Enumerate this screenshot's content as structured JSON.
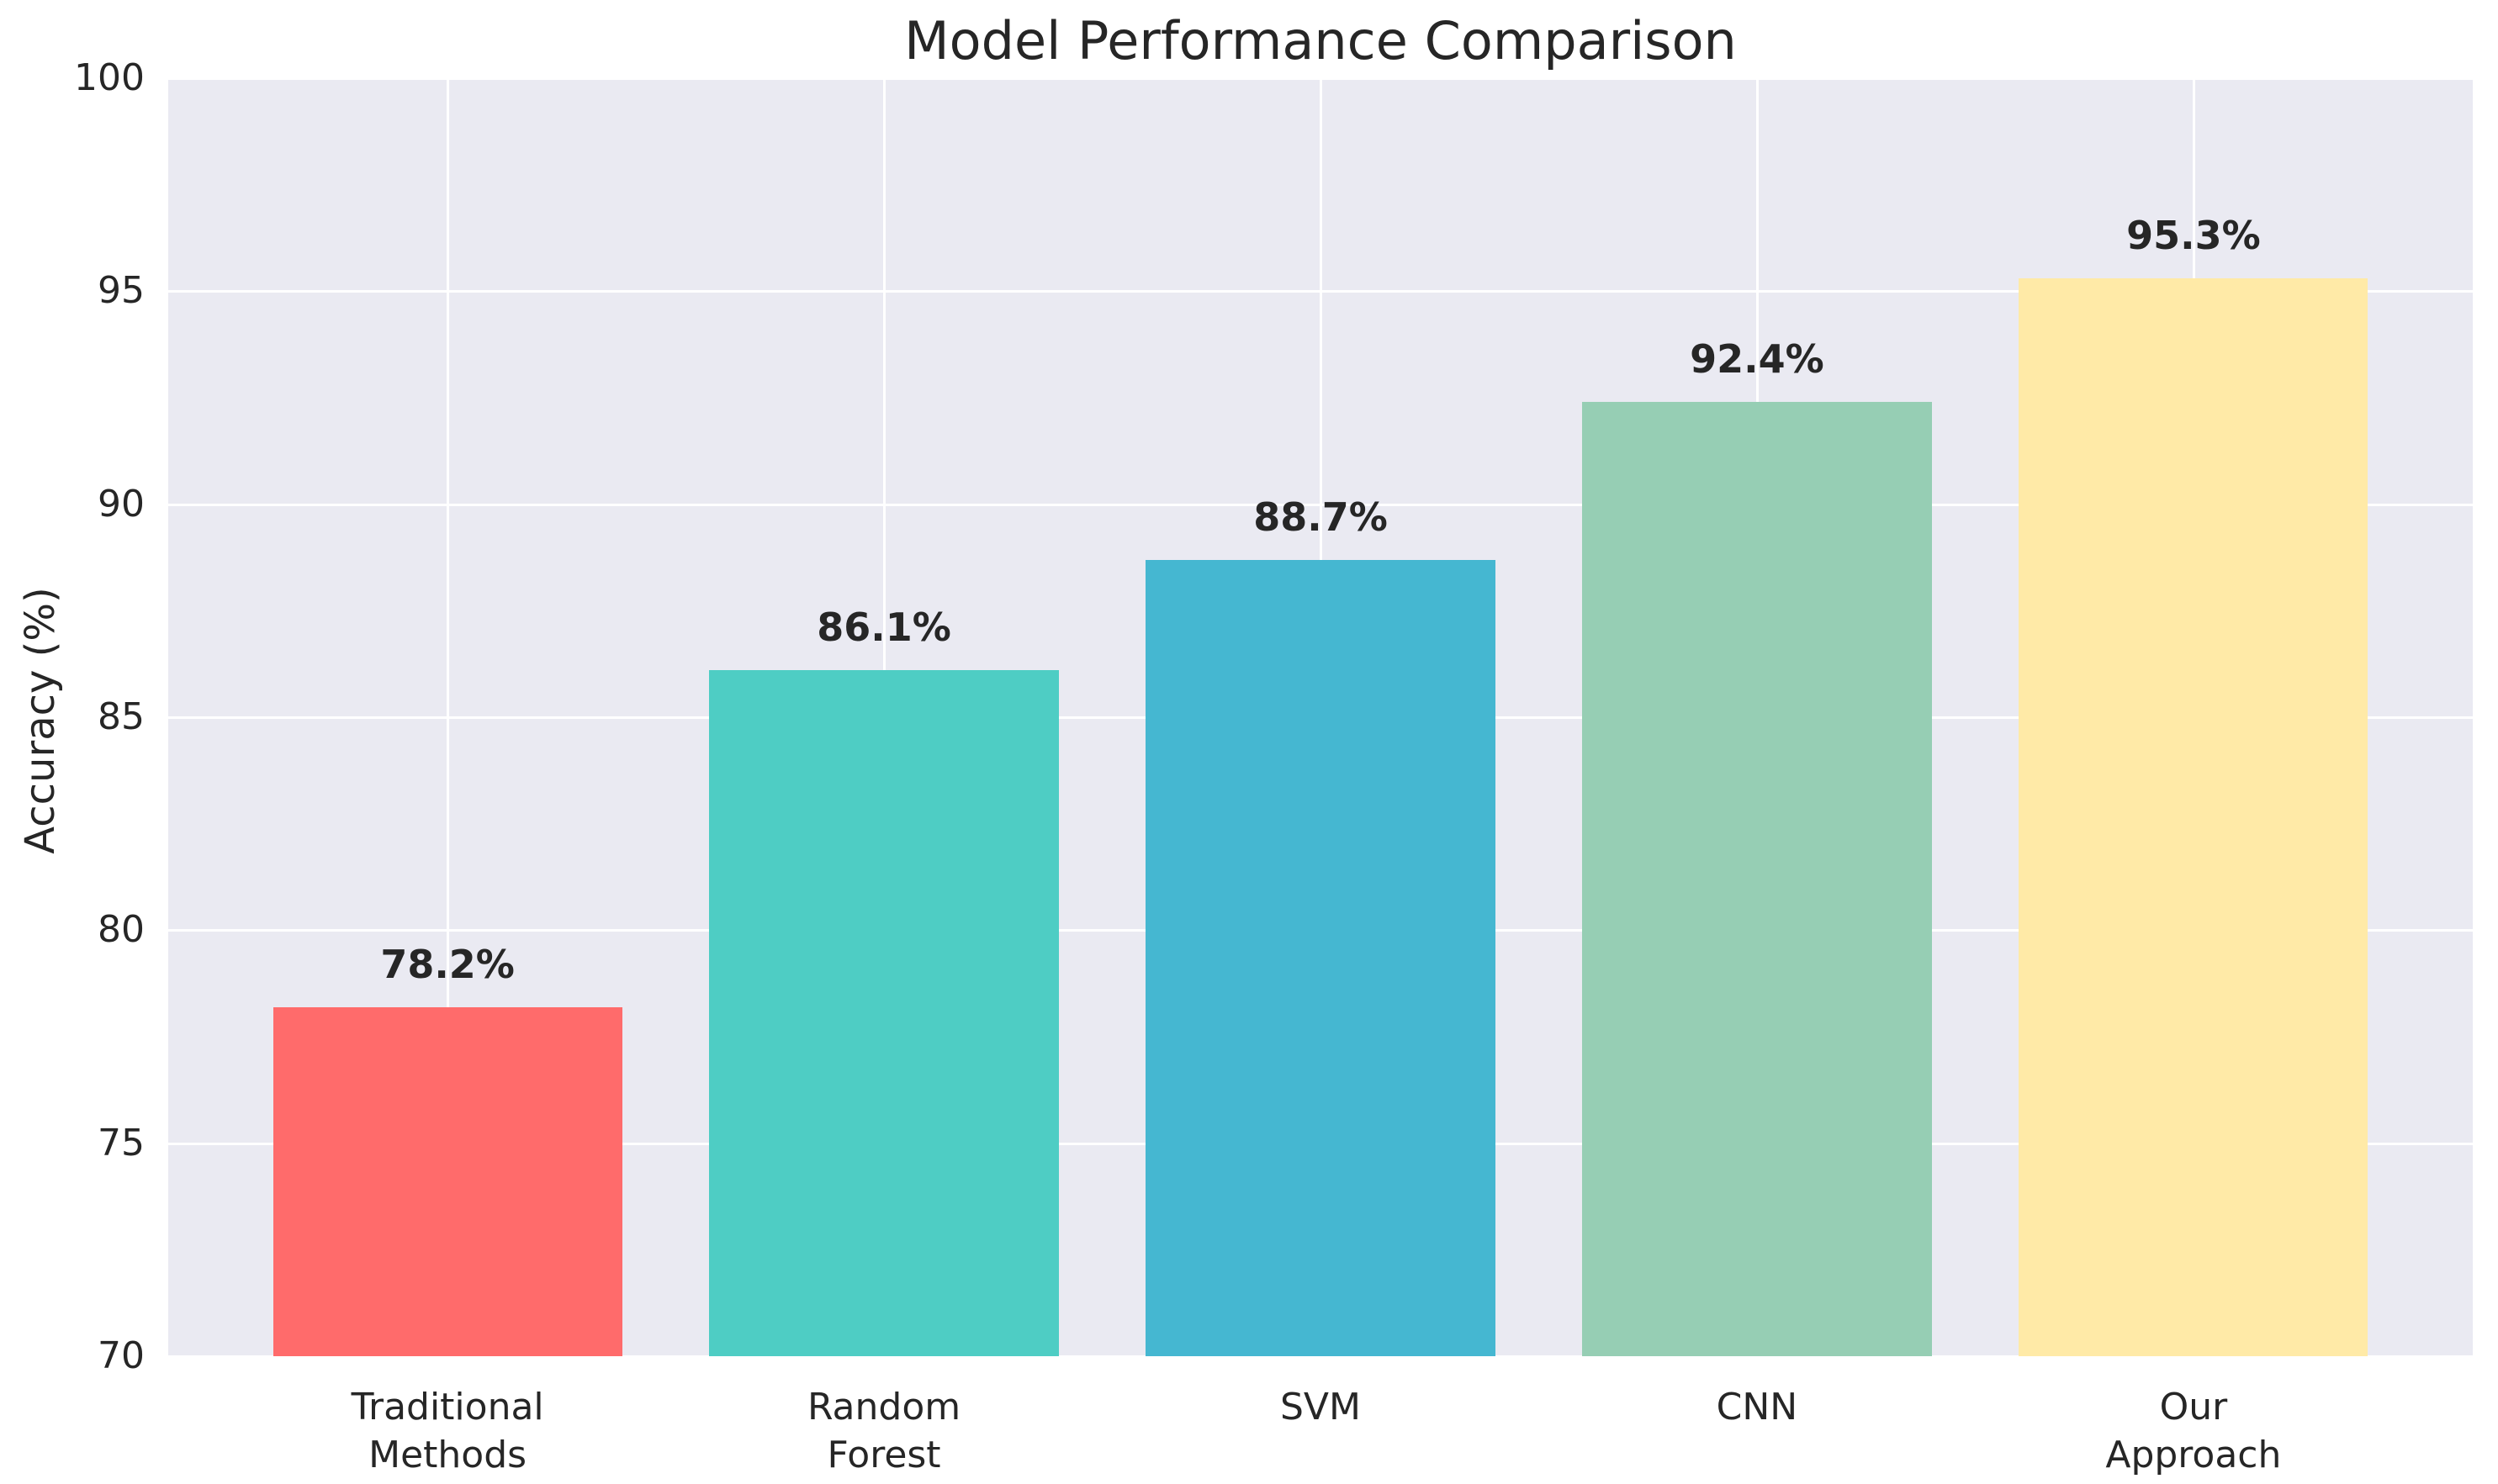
{
  "chart_data": {
    "type": "bar",
    "title": "Model Performance Comparison",
    "xlabel": "",
    "ylabel": "Accuracy (%)",
    "categories": [
      "Traditional\nMethods",
      "Random\nForest",
      "SVM",
      "CNN",
      "Our\nApproach"
    ],
    "values": [
      78.2,
      86.1,
      88.7,
      92.4,
      95.3
    ],
    "bar_labels": [
      "78.2%",
      "86.1%",
      "88.7%",
      "92.4%",
      "95.3%"
    ],
    "bar_colors": [
      "#FF6B6B",
      "#4ECDC4",
      "#45B7D1",
      "#96CEB4",
      "#FFEAA7"
    ],
    "ylim": [
      70,
      100
    ],
    "yticks": [
      70,
      75,
      80,
      85,
      90,
      95,
      100
    ],
    "grid": true,
    "legend": "none",
    "colors": {
      "plot_background": "#EAEAF2",
      "figure_background": "#FFFFFF",
      "gridline": "#FFFFFF",
      "text": "#262626"
    }
  }
}
